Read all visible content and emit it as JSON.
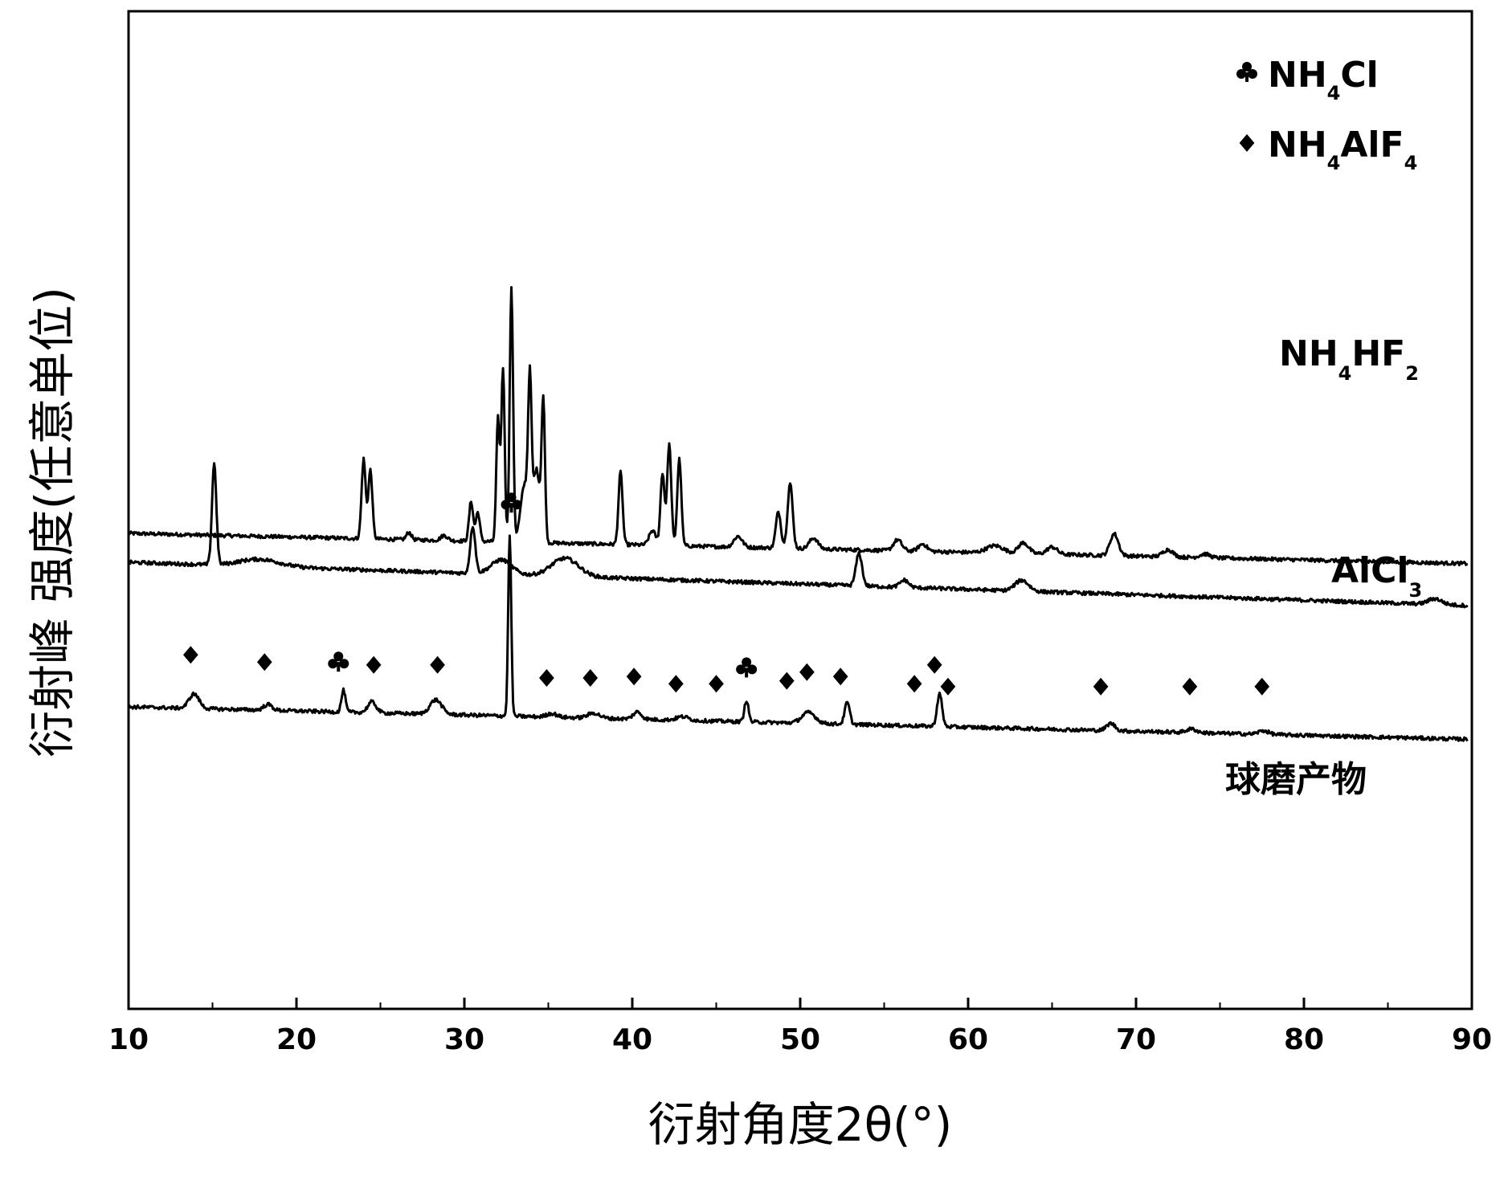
{
  "chart_data": {
    "type": "line",
    "xlabel": "衍射角度2θ(°)",
    "ylabel": "衍射峰 强度(任意单位)",
    "xlim": [
      10,
      90
    ],
    "xticks": [
      "10",
      "20",
      "30",
      "40",
      "50",
      "60",
      "70",
      "80",
      "90"
    ],
    "grid": false,
    "y_scale": "arbitrary units, patterns vertically offset",
    "legend": {
      "position": "top-right",
      "entries": [
        {
          "marker": "club",
          "name": "NH",
          "sub1": "4",
          "rest": "Cl",
          "sub2": ""
        },
        {
          "marker": "diamond",
          "name": "NH",
          "sub1": "4",
          "rest": "AlF",
          "sub2": "4"
        }
      ]
    },
    "series": [
      {
        "name": "NH4HF2",
        "label_main": "NH",
        "label_sub1": "4",
        "label_mid": "HF",
        "label_sub2": "2",
        "baseline": 0.4,
        "drift": -0.42,
        "peaks": [
          [
            24.0,
            1.1,
            0.12
          ],
          [
            24.4,
            0.95,
            0.12
          ],
          [
            26.7,
            0.1,
            0.15
          ],
          [
            28.8,
            0.07,
            0.2
          ],
          [
            30.4,
            0.55,
            0.12
          ],
          [
            30.8,
            0.4,
            0.12
          ],
          [
            32.0,
            1.7,
            0.1
          ],
          [
            32.3,
            2.4,
            0.1
          ],
          [
            32.8,
            3.5,
            0.1
          ],
          [
            33.6,
            0.8,
            0.25
          ],
          [
            33.9,
            1.9,
            0.1
          ],
          [
            34.3,
            1.0,
            0.2
          ],
          [
            34.7,
            1.9,
            0.1
          ],
          [
            39.3,
            1.0,
            0.12
          ],
          [
            41.2,
            0.2,
            0.2
          ],
          [
            41.8,
            1.0,
            0.12
          ],
          [
            42.2,
            1.4,
            0.12
          ],
          [
            42.8,
            1.2,
            0.12
          ],
          [
            46.3,
            0.15,
            0.25
          ],
          [
            48.7,
            0.5,
            0.15
          ],
          [
            49.4,
            0.9,
            0.15
          ],
          [
            50.8,
            0.15,
            0.25
          ],
          [
            55.8,
            0.15,
            0.25
          ],
          [
            57.3,
            0.1,
            0.25
          ],
          [
            61.6,
            0.1,
            0.5
          ],
          [
            63.3,
            0.15,
            0.3
          ],
          [
            65.0,
            0.1,
            0.3
          ],
          [
            68.7,
            0.3,
            0.25
          ],
          [
            71.9,
            0.1,
            0.3
          ],
          [
            74.1,
            0.05,
            0.3
          ]
        ]
      },
      {
        "name": "AlCl3",
        "label_main": "AlCl",
        "label_sub1": "3",
        "baseline": 0.0,
        "drift": -0.6,
        "peaks": [
          [
            15.1,
            1.4,
            0.13
          ],
          [
            17.8,
            0.1,
            1.2
          ],
          [
            30.5,
            0.65,
            0.15
          ],
          [
            32.2,
            0.2,
            0.6
          ],
          [
            36.0,
            0.25,
            0.8
          ],
          [
            53.5,
            0.45,
            0.18
          ],
          [
            56.2,
            0.1,
            0.25
          ],
          [
            63.2,
            0.15,
            0.4
          ],
          [
            87.8,
            0.08,
            0.4
          ]
        ]
      },
      {
        "name": "球磨产物",
        "label_main": "球磨产物",
        "baseline": -2.0,
        "drift": -0.45,
        "peaks": [
          [
            13.9,
            0.2,
            0.3
          ],
          [
            18.3,
            0.08,
            0.25
          ],
          [
            22.8,
            0.3,
            0.12
          ],
          [
            24.5,
            0.15,
            0.25
          ],
          [
            28.3,
            0.2,
            0.35
          ],
          [
            32.7,
            2.5,
            0.09
          ],
          [
            35.2,
            0.05,
            0.3
          ],
          [
            37.7,
            0.07,
            0.35
          ],
          [
            40.3,
            0.1,
            0.25
          ],
          [
            43.0,
            0.05,
            0.35
          ],
          [
            46.8,
            0.3,
            0.12
          ],
          [
            50.5,
            0.15,
            0.4
          ],
          [
            52.8,
            0.3,
            0.15
          ],
          [
            58.3,
            0.45,
            0.15
          ],
          [
            68.5,
            0.1,
            0.25
          ],
          [
            73.3,
            0.05,
            0.3
          ],
          [
            77.6,
            0.05,
            0.3
          ]
        ]
      }
    ],
    "markers": {
      "club": [
        [
          22.5,
          -1.38
        ],
        [
          32.8,
          0.82
        ],
        [
          46.8,
          -1.46
        ]
      ],
      "diamond": [
        [
          13.7,
          -1.28
        ],
        [
          18.1,
          -1.38
        ],
        [
          24.6,
          -1.42
        ],
        [
          28.4,
          -1.42
        ],
        [
          34.9,
          -1.6
        ],
        [
          37.5,
          -1.6
        ],
        [
          40.1,
          -1.58
        ],
        [
          42.6,
          -1.68
        ],
        [
          45.0,
          -1.68
        ],
        [
          49.2,
          -1.64
        ],
        [
          50.4,
          -1.52
        ],
        [
          52.4,
          -1.58
        ],
        [
          56.8,
          -1.68
        ],
        [
          58.0,
          -1.42
        ],
        [
          58.8,
          -1.72
        ],
        [
          67.9,
          -1.72
        ],
        [
          73.2,
          -1.72
        ],
        [
          77.5,
          -1.72
        ]
      ]
    }
  }
}
